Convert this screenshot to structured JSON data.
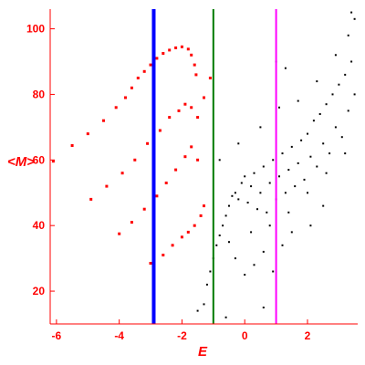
{
  "chart_data": {
    "type": "scatter",
    "title": "",
    "xlabel": "E",
    "ylabel": "<M>",
    "xlim": [
      -6.2,
      3.6
    ],
    "ylim": [
      10,
      106
    ],
    "xticks": [
      -6,
      -4,
      -2,
      0,
      2
    ],
    "yticks": [
      20,
      40,
      60,
      80,
      100
    ],
    "grid": false,
    "legend": "none",
    "vertical_lines": [
      {
        "x": -2.9,
        "color": "#0000ff"
      },
      {
        "x": -1.0,
        "color": "#007a00"
      },
      {
        "x": 1.0,
        "color": "#ff00ff"
      }
    ],
    "series": [
      {
        "color": "#ff0000",
        "points": [
          [
            -6.1,
            59.6
          ],
          [
            -5.5,
            64.4
          ],
          [
            -5.0,
            68.0
          ],
          [
            -4.5,
            72.0
          ],
          [
            -4.1,
            76.0
          ],
          [
            -3.8,
            79.0
          ],
          [
            -3.6,
            82.0
          ],
          [
            -3.4,
            85.0
          ],
          [
            -3.2,
            87.0
          ],
          [
            -3.0,
            89.0
          ],
          [
            -2.8,
            91.0
          ],
          [
            -2.6,
            92.5
          ],
          [
            -2.4,
            93.5
          ],
          [
            -2.2,
            94.2
          ],
          [
            -2.0,
            94.5
          ],
          [
            -1.8,
            93.8
          ],
          [
            -1.7,
            92.0
          ],
          [
            -1.6,
            89.0
          ],
          [
            -1.55,
            86.0
          ],
          [
            -4.9,
            48.0
          ],
          [
            -4.4,
            52.0
          ],
          [
            -3.9,
            56.0
          ],
          [
            -3.5,
            60.0
          ],
          [
            -3.1,
            65.0
          ],
          [
            -2.7,
            69.0
          ],
          [
            -2.4,
            73.0
          ],
          [
            -2.1,
            75.0
          ],
          [
            -1.9,
            77.0
          ],
          [
            -1.7,
            76.0
          ],
          [
            -1.5,
            73.0
          ],
          [
            -1.3,
            79.0
          ],
          [
            -1.1,
            85.0
          ],
          [
            -4.0,
            37.5
          ],
          [
            -3.6,
            41.0
          ],
          [
            -3.2,
            45.0
          ],
          [
            -2.8,
            49.0
          ],
          [
            -2.5,
            53.0
          ],
          [
            -2.2,
            57.0
          ],
          [
            -1.9,
            61.0
          ],
          [
            -1.7,
            64.0
          ],
          [
            -1.5,
            60.0
          ],
          [
            -3.0,
            28.5
          ],
          [
            -2.6,
            31.0
          ],
          [
            -2.3,
            34.0
          ],
          [
            -2.0,
            36.5
          ],
          [
            -1.8,
            38.0
          ],
          [
            -1.6,
            40.0
          ],
          [
            -1.4,
            43.0
          ],
          [
            -1.3,
            46.0
          ]
        ]
      },
      {
        "color": "#000000",
        "points": [
          [
            -1.5,
            14.0
          ],
          [
            -1.3,
            16.0
          ],
          [
            -1.2,
            22.0
          ],
          [
            -1.1,
            26.0
          ],
          [
            -1.0,
            30.0
          ],
          [
            -0.9,
            34.0
          ],
          [
            -0.8,
            37.0
          ],
          [
            -0.7,
            40.0
          ],
          [
            -0.6,
            43.0
          ],
          [
            -0.5,
            46.0
          ],
          [
            -0.4,
            49.0
          ],
          [
            -0.3,
            50.0
          ],
          [
            -0.2,
            48.0
          ],
          [
            -0.1,
            53.0
          ],
          [
            0.0,
            55.0
          ],
          [
            0.1,
            47.0
          ],
          [
            0.2,
            52.0
          ],
          [
            0.3,
            56.0
          ],
          [
            0.4,
            45.0
          ],
          [
            0.5,
            50.0
          ],
          [
            0.6,
            58.0
          ],
          [
            0.7,
            44.0
          ],
          [
            0.8,
            53.0
          ],
          [
            0.9,
            60.0
          ],
          [
            1.0,
            48.0
          ],
          [
            1.1,
            55.0
          ],
          [
            1.2,
            62.0
          ],
          [
            1.3,
            50.0
          ],
          [
            1.4,
            57.0
          ],
          [
            1.5,
            64.0
          ],
          [
            1.6,
            52.0
          ],
          [
            1.7,
            59.0
          ],
          [
            1.8,
            66.0
          ],
          [
            1.9,
            54.0
          ],
          [
            2.0,
            68.0
          ],
          [
            2.1,
            61.0
          ],
          [
            2.2,
            72.0
          ],
          [
            2.3,
            58.0
          ],
          [
            2.4,
            74.0
          ],
          [
            2.5,
            65.0
          ],
          [
            2.6,
            77.0
          ],
          [
            2.7,
            62.0
          ],
          [
            2.8,
            80.0
          ],
          [
            2.9,
            70.0
          ],
          [
            3.0,
            83.0
          ],
          [
            3.1,
            67.0
          ],
          [
            3.2,
            86.0
          ],
          [
            3.3,
            75.0
          ],
          [
            3.4,
            90.0
          ],
          [
            3.5,
            80.0
          ],
          [
            -0.8,
            60.0
          ],
          [
            -0.5,
            35.0
          ],
          [
            -0.2,
            65.0
          ],
          [
            0.2,
            38.0
          ],
          [
            0.5,
            70.0
          ],
          [
            0.8,
            40.0
          ],
          [
            1.1,
            76.0
          ],
          [
            1.4,
            44.0
          ],
          [
            1.7,
            78.0
          ],
          [
            2.0,
            50.0
          ],
          [
            2.3,
            84.0
          ],
          [
            2.6,
            56.0
          ],
          [
            2.9,
            92.0
          ],
          [
            3.2,
            62.0
          ],
          [
            3.3,
            98.0
          ],
          [
            3.4,
            105.0
          ],
          [
            3.5,
            103.0
          ],
          [
            -0.3,
            30.0
          ],
          [
            0.0,
            25.0
          ],
          [
            0.3,
            28.0
          ],
          [
            0.6,
            32.0
          ],
          [
            0.9,
            26.0
          ],
          [
            1.2,
            34.0
          ],
          [
            1.5,
            38.0
          ],
          [
            2.1,
            40.0
          ],
          [
            2.5,
            46.0
          ],
          [
            -0.6,
            12.0
          ],
          [
            0.6,
            15.0
          ],
          [
            1.0,
            90.0
          ],
          [
            1.3,
            88.0
          ]
        ]
      }
    ]
  }
}
